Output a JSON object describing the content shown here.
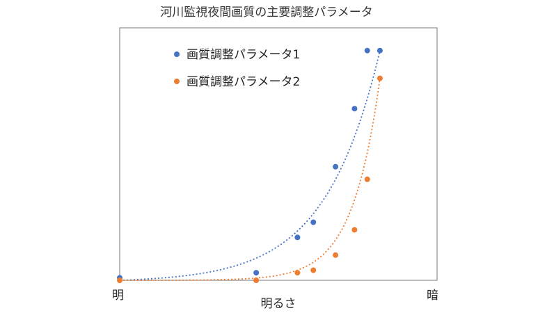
{
  "chart_data": {
    "type": "scatter",
    "title": "河川監視夜間画質の主要調整パラメータ",
    "xlabel": "明るさ",
    "x_left_label": "明",
    "x_right_label": "暗",
    "ylabel": "",
    "xlim": [
      0,
      100
    ],
    "ylim": [
      0,
      100
    ],
    "grid": false,
    "legend_position": "top-left",
    "trendline": "exponential (dotted)",
    "series": [
      {
        "name": "画質調整パラメータ1",
        "color": "#4472C4",
        "points": [
          [
            0,
            1
          ],
          [
            43,
            3
          ],
          [
            56,
            17
          ],
          [
            61,
            23
          ],
          [
            68,
            45
          ],
          [
            74,
            68
          ],
          [
            78,
            91
          ],
          [
            82,
            91
          ]
        ]
      },
      {
        "name": "画質調整パラメータ2",
        "color": "#ED7D31",
        "points": [
          [
            0,
            0
          ],
          [
            43,
            0
          ],
          [
            56,
            3
          ],
          [
            61,
            4
          ],
          [
            68,
            10
          ],
          [
            74,
            20
          ],
          [
            78,
            40
          ],
          [
            82,
            80
          ]
        ]
      }
    ]
  }
}
